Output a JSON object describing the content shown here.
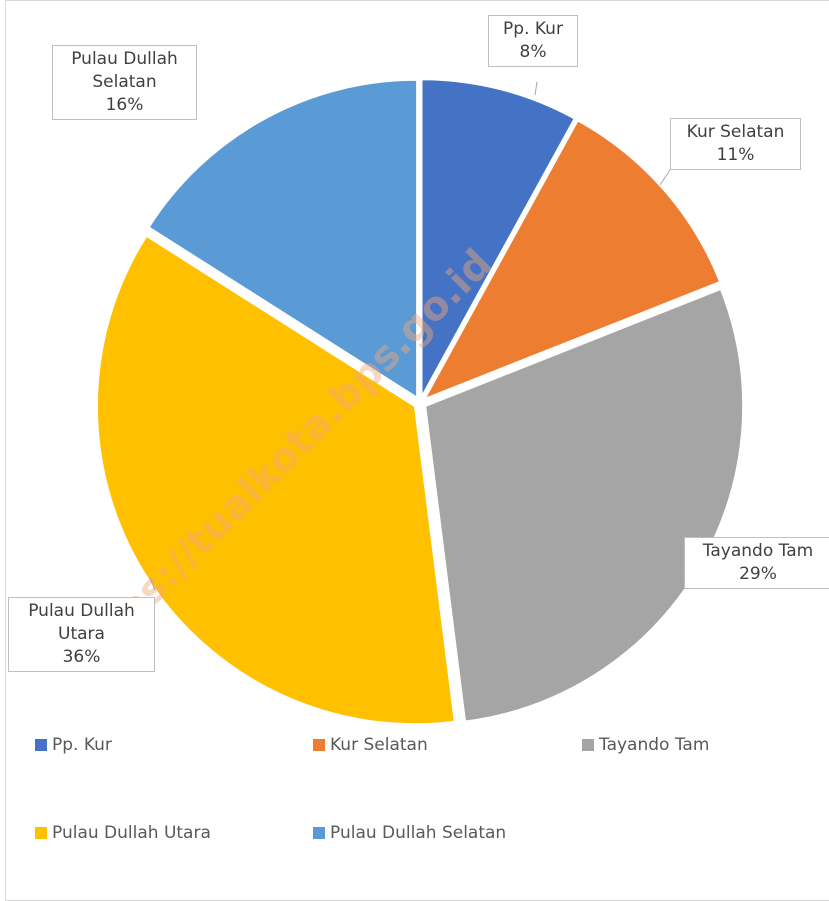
{
  "chart_data": {
    "type": "pie",
    "categories": [
      "Pp. Kur",
      "Kur Selatan",
      "Tayando Tam",
      "Pulau Dullah Utara",
      "Pulau Dullah Selatan"
    ],
    "values": [
      8,
      11,
      29,
      36,
      16
    ],
    "value_labels": [
      "8%",
      "11%",
      "29%",
      "36%",
      "16%"
    ],
    "colors": [
      "#4472c4",
      "#ed7d31",
      "#a5a5a5",
      "#ffc000",
      "#5b9bd5"
    ],
    "legend": "bottom",
    "watermark": "https://tualkota.bps.go.id"
  }
}
